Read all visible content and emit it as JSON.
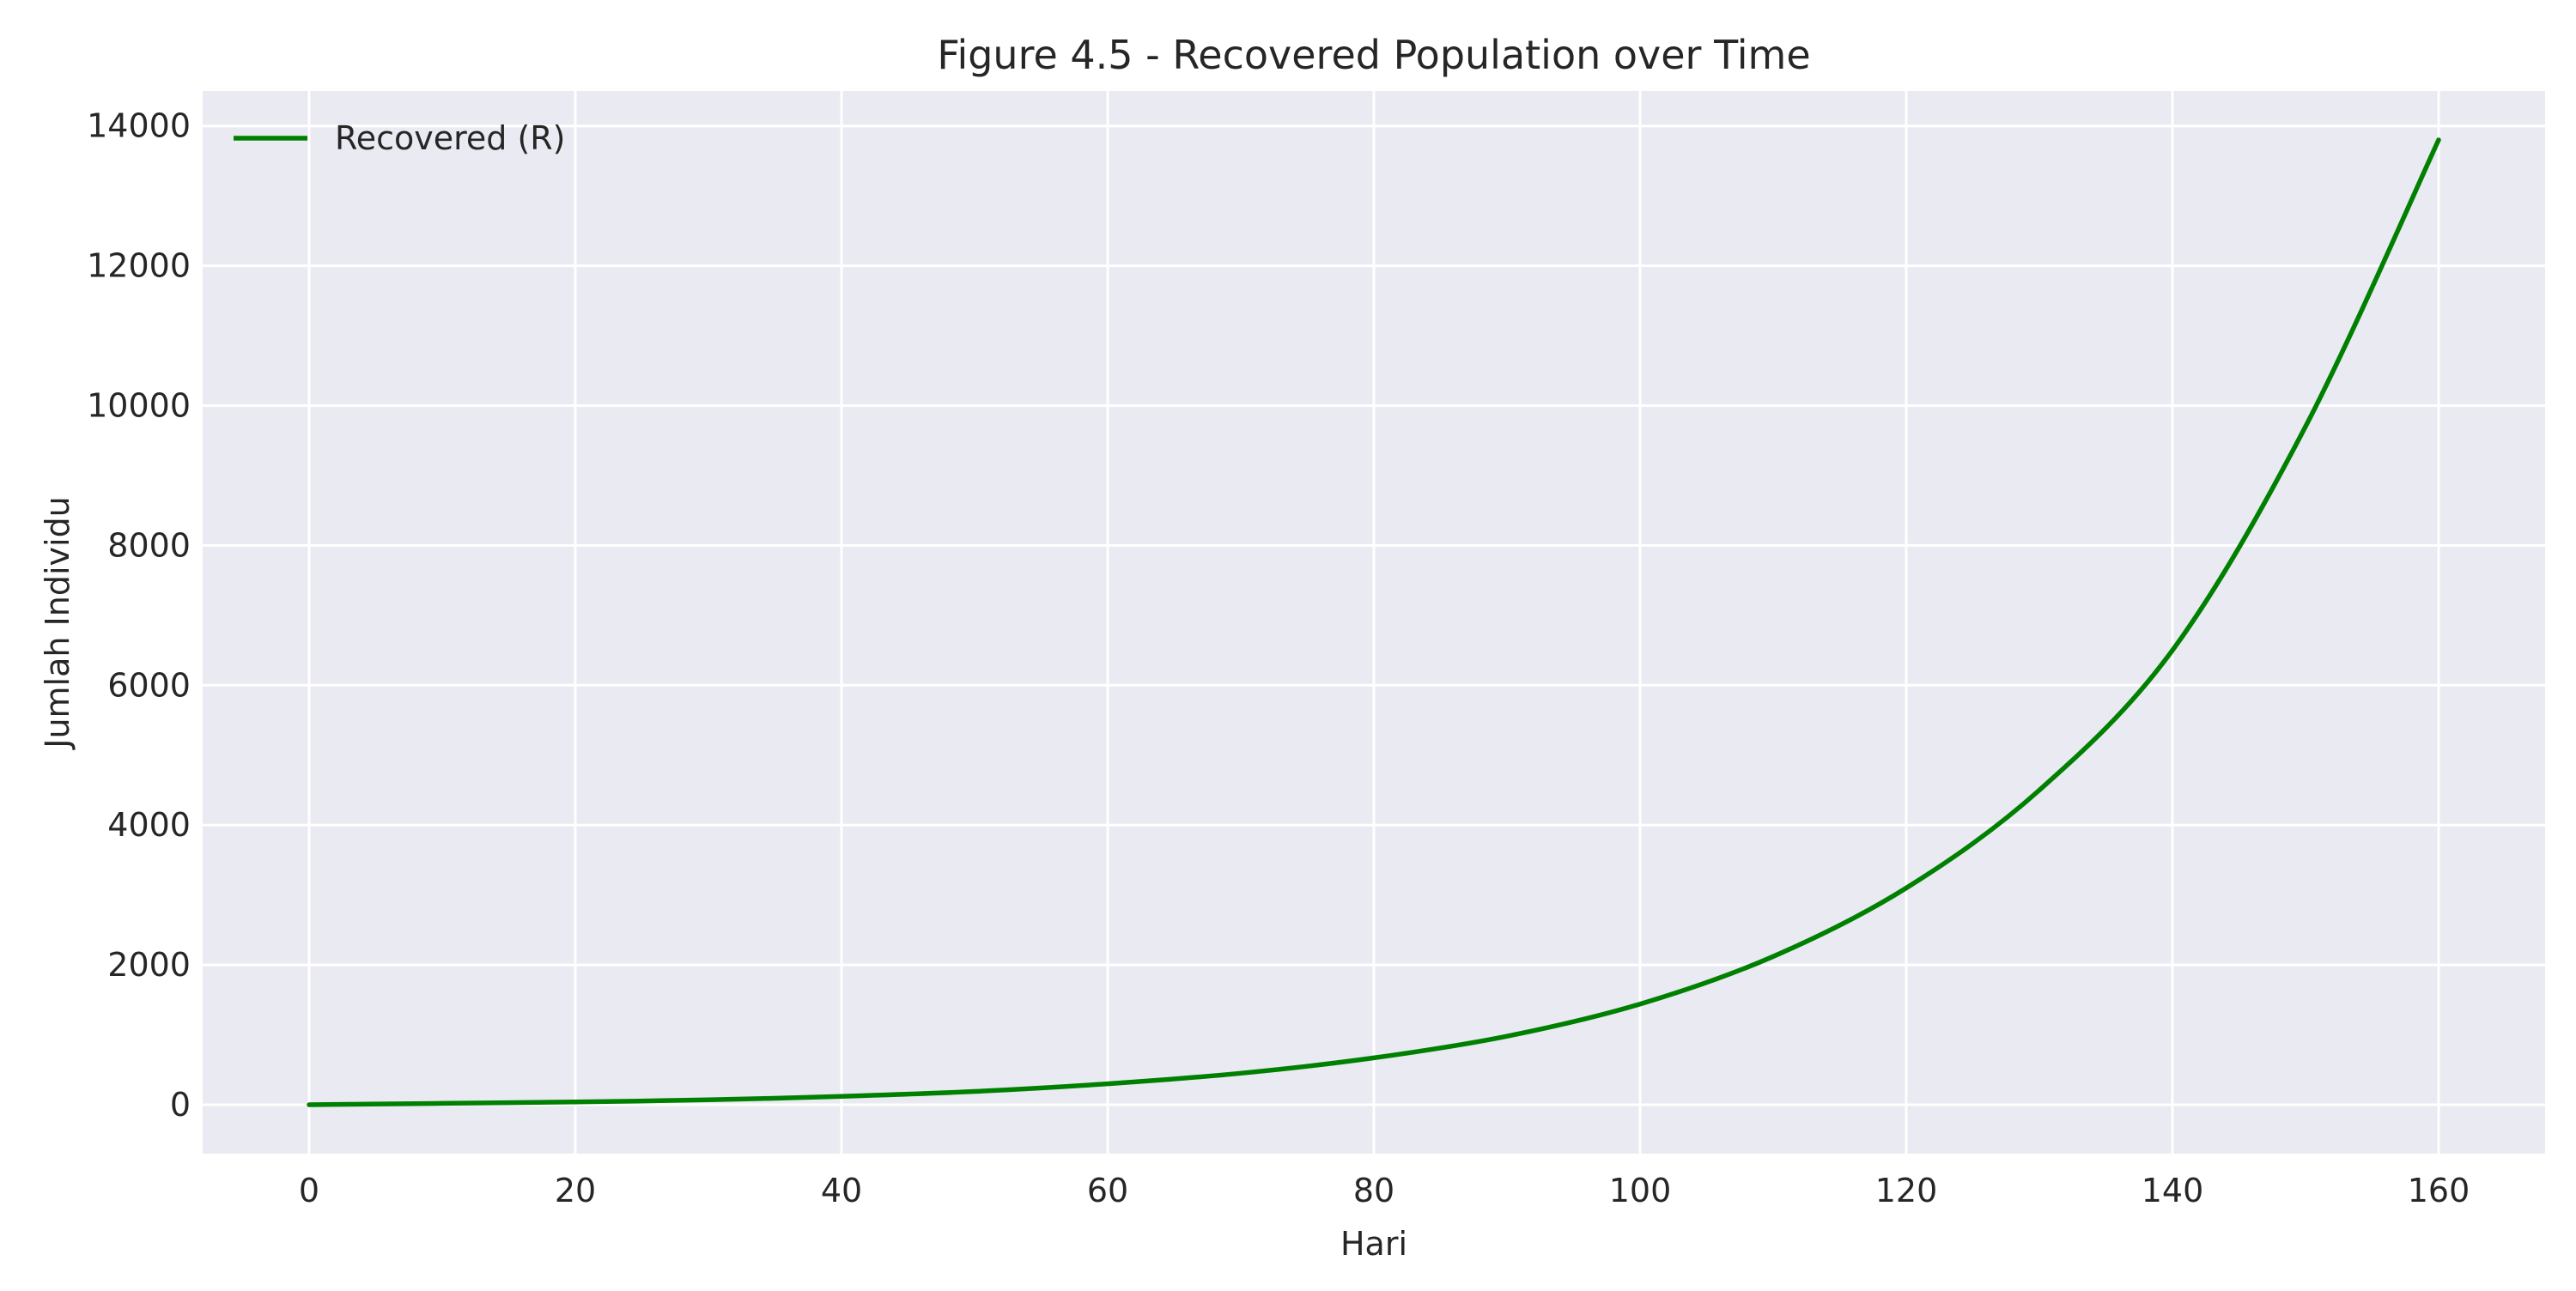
{
  "chart_data": {
    "type": "line",
    "title": "Figure 4.5 - Recovered Population over Time",
    "xlabel": "Hari",
    "ylabel": "Jumlah Individu",
    "xlim": [
      -8,
      168
    ],
    "ylim": [
      -700,
      14500
    ],
    "x_ticks": [
      0,
      20,
      40,
      60,
      80,
      100,
      120,
      140,
      160
    ],
    "y_ticks": [
      0,
      2000,
      4000,
      6000,
      8000,
      10000,
      12000,
      14000
    ],
    "x_tick_labels": [
      "0",
      "20",
      "40",
      "60",
      "80",
      "100",
      "120",
      "140",
      "160"
    ],
    "y_tick_labels": [
      "0",
      "2000",
      "4000",
      "6000",
      "8000",
      "10000",
      "12000",
      "14000"
    ],
    "grid": true,
    "legend_position": "top-left",
    "colors": {
      "plot_background": "#EAEAF2",
      "grid": "#FFFFFF",
      "series": "#008000"
    },
    "series": [
      {
        "name": "Recovered (R)",
        "color": "#008000",
        "x": [
          0,
          10,
          20,
          30,
          40,
          50,
          60,
          70,
          80,
          90,
          100,
          110,
          120,
          130,
          140,
          150,
          160
        ],
        "y": [
          0,
          20,
          40,
          70,
          120,
          190,
          300,
          450,
          670,
          980,
          1440,
          2120,
          3100,
          4500,
          6500,
          9700,
          13800
        ]
      }
    ]
  }
}
